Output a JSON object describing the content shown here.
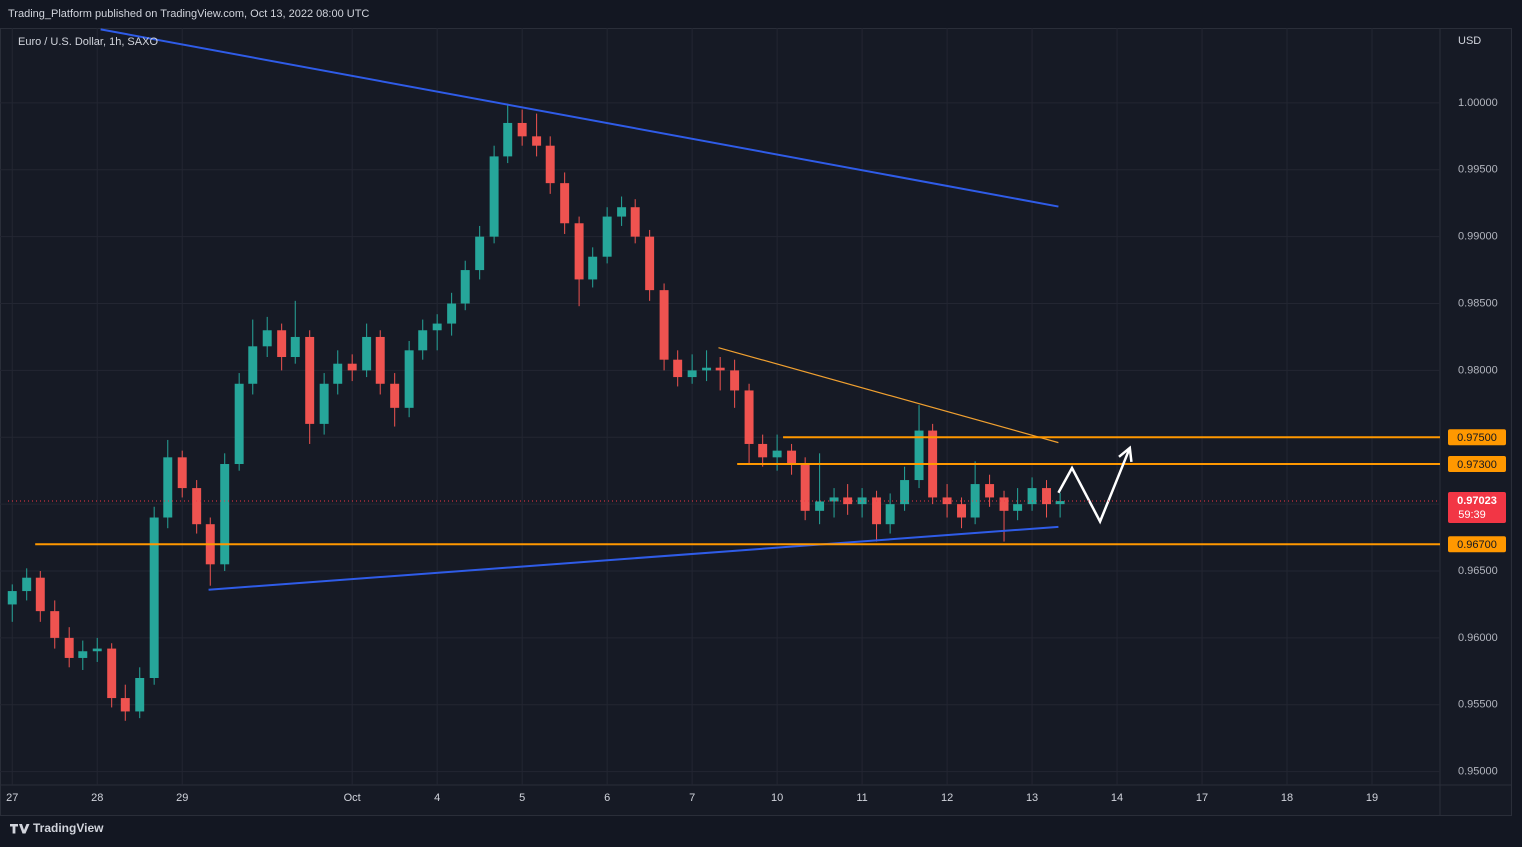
{
  "header": "Trading_Platform published on TradingView.com, Oct 13, 2022 08:00 UTC",
  "brand": "TradingView",
  "chart_data": {
    "type": "candlestick",
    "title": "Euro / U.S. Dollar, 1h, SAXO",
    "y_label": "USD",
    "up_color": "#26a69a",
    "down_color": "#ef5350",
    "grid": true,
    "xlim": [
      -0.05,
      16.8
    ],
    "ylim": [
      0.949,
      1.0056
    ],
    "xticks": [
      {
        "value": 0,
        "label": "27"
      },
      {
        "value": 1,
        "label": "28"
      },
      {
        "value": 2,
        "label": "29"
      },
      {
        "value": 4,
        "label": "Oct"
      },
      {
        "value": 5,
        "label": "4"
      },
      {
        "value": 6,
        "label": "5"
      },
      {
        "value": 7,
        "label": "6"
      },
      {
        "value": 8,
        "label": "7"
      },
      {
        "value": 9,
        "label": "10"
      },
      {
        "value": 10,
        "label": "11"
      },
      {
        "value": 11,
        "label": "12"
      },
      {
        "value": 12,
        "label": "13"
      },
      {
        "value": 13,
        "label": "14"
      },
      {
        "value": 14,
        "label": "17"
      },
      {
        "value": 15,
        "label": "18"
      },
      {
        "value": 16,
        "label": "19"
      }
    ],
    "yticks": [
      {
        "value": 0.95,
        "label": "0.95000"
      },
      {
        "value": 0.955,
        "label": "0.95500"
      },
      {
        "value": 0.96,
        "label": "0.96000"
      },
      {
        "value": 0.965,
        "label": "0.96500"
      },
      {
        "value": 0.97,
        "label": "0.97000"
      },
      {
        "value": 0.975,
        "label": "0.97500"
      },
      {
        "value": 0.98,
        "label": "0.98000"
      },
      {
        "value": 0.985,
        "label": "0.98500"
      },
      {
        "value": 0.99,
        "label": "0.99000"
      },
      {
        "value": 0.995,
        "label": "0.99500"
      },
      {
        "value": 1.0,
        "label": "1.00000"
      }
    ],
    "x": [
      0,
      0.17,
      0.33,
      0.5,
      0.67,
      0.83,
      1,
      1.17,
      1.33,
      1.5,
      1.67,
      1.83,
      2,
      2.17,
      2.33,
      2.5,
      2.67,
      2.83,
      3,
      3.17,
      3.33,
      3.5,
      3.67,
      3.83,
      4,
      4.17,
      4.33,
      4.5,
      4.67,
      4.83,
      5,
      5.17,
      5.33,
      5.5,
      5.67,
      5.83,
      6,
      6.17,
      6.33,
      6.5,
      6.67,
      6.83,
      7,
      7.17,
      7.33,
      7.5,
      7.67,
      7.83,
      8,
      8.17,
      8.33,
      8.5,
      8.67,
      8.83,
      9,
      9.17,
      9.33,
      9.5,
      9.67,
      9.83,
      10,
      10.17,
      10.33,
      10.5,
      10.67,
      10.83,
      11,
      11.17,
      11.33,
      11.5,
      11.67,
      11.83,
      12,
      12.17,
      12.33
    ],
    "open": [
      0.9625,
      0.9635,
      0.9645,
      0.962,
      0.96,
      0.9585,
      0.959,
      0.9592,
      0.9555,
      0.9545,
      0.957,
      0.969,
      0.9735,
      0.9712,
      0.9685,
      0.9655,
      0.973,
      0.979,
      0.9818,
      0.983,
      0.981,
      0.9825,
      0.976,
      0.979,
      0.9805,
      0.98,
      0.9825,
      0.979,
      0.9772,
      0.9815,
      0.983,
      0.9835,
      0.985,
      0.9875,
      0.99,
      0.996,
      0.9985,
      0.9975,
      0.9968,
      0.994,
      0.991,
      0.9868,
      0.9885,
      0.9915,
      0.9922,
      0.99,
      0.986,
      0.9808,
      0.9795,
      0.98,
      0.9802,
      0.98,
      0.9785,
      0.9745,
      0.9735,
      0.974,
      0.973,
      0.9695,
      0.9702,
      0.9705,
      0.97,
      0.9705,
      0.9685,
      0.97,
      0.9718,
      0.9755,
      0.9705,
      0.97,
      0.969,
      0.9715,
      0.9705,
      0.9695,
      0.97,
      0.9712,
      0.97
    ],
    "high": [
      0.964,
      0.9652,
      0.965,
      0.9628,
      0.9608,
      0.9598,
      0.96,
      0.9596,
      0.9565,
      0.9578,
      0.9698,
      0.9748,
      0.974,
      0.9718,
      0.969,
      0.9738,
      0.9798,
      0.9838,
      0.984,
      0.9835,
      0.9852,
      0.983,
      0.9798,
      0.9815,
      0.9812,
      0.9835,
      0.983,
      0.9798,
      0.9822,
      0.9838,
      0.9842,
      0.9858,
      0.9882,
      0.9908,
      0.9968,
      0.99993,
      0.9995,
      0.9992,
      0.9975,
      0.9948,
      0.9915,
      0.9892,
      0.9922,
      0.993,
      0.9928,
      0.9905,
      0.9865,
      0.9815,
      0.9812,
      0.9815,
      0.981,
      0.9808,
      0.979,
      0.9752,
      0.9752,
      0.9745,
      0.9735,
      0.9738,
      0.9712,
      0.9715,
      0.9712,
      0.971,
      0.9708,
      0.9728,
      0.9774,
      0.976,
      0.9715,
      0.9705,
      0.9732,
      0.9722,
      0.971,
      0.9712,
      0.972,
      0.9718,
      0.97085
    ],
    "low": [
      0.9612,
      0.9628,
      0.9612,
      0.9592,
      0.9578,
      0.9576,
      0.9582,
      0.9548,
      0.9538,
      0.954,
      0.9565,
      0.9682,
      0.9705,
      0.9678,
      0.9639,
      0.965,
      0.9725,
      0.9782,
      0.981,
      0.98,
      0.9805,
      0.9745,
      0.9752,
      0.9782,
      0.9792,
      0.9795,
      0.9782,
      0.9758,
      0.9765,
      0.9808,
      0.9815,
      0.9826,
      0.9845,
      0.9868,
      0.9895,
      0.9955,
      0.9968,
      0.996,
      0.9932,
      0.9902,
      0.9848,
      0.9862,
      0.988,
      0.9908,
      0.9895,
      0.9852,
      0.98,
      0.9788,
      0.979,
      0.9792,
      0.9785,
      0.9772,
      0.973,
      0.9728,
      0.9725,
      0.9722,
      0.9688,
      0.9685,
      0.969,
      0.9692,
      0.969,
      0.9672,
      0.9678,
      0.9695,
      0.9712,
      0.97,
      0.969,
      0.9682,
      0.9685,
      0.9698,
      0.9672,
      0.9688,
      0.9695,
      0.969,
      0.969
    ],
    "close": [
      0.9635,
      0.9645,
      0.962,
      0.96,
      0.9585,
      0.959,
      0.9592,
      0.9555,
      0.9545,
      0.957,
      0.969,
      0.9735,
      0.9712,
      0.9685,
      0.9655,
      0.973,
      0.979,
      0.9818,
      0.983,
      0.981,
      0.9825,
      0.976,
      0.979,
      0.9805,
      0.98,
      0.9825,
      0.979,
      0.9772,
      0.9815,
      0.983,
      0.9835,
      0.985,
      0.9875,
      0.99,
      0.996,
      0.9985,
      0.9975,
      0.9968,
      0.994,
      0.991,
      0.9868,
      0.9885,
      0.9915,
      0.9922,
      0.99,
      0.986,
      0.9808,
      0.9795,
      0.98,
      0.9802,
      0.98,
      0.9785,
      0.9745,
      0.9735,
      0.974,
      0.973,
      0.9695,
      0.9702,
      0.9705,
      0.97,
      0.9705,
      0.9685,
      0.97,
      0.9718,
      0.9755,
      0.9705,
      0.97,
      0.969,
      0.9715,
      0.9705,
      0.9695,
      0.97,
      0.9712,
      0.97,
      0.97023
    ],
    "last_price": {
      "value": 0.97023,
      "label": "0.97023",
      "countdown": "59:39",
      "color": "#f23645"
    },
    "levels": [
      {
        "value": 0.975,
        "label": "0.97500",
        "start": 9.07,
        "color": "#ff9800"
      },
      {
        "value": 0.973,
        "label": "0.97300",
        "start": 8.53,
        "color": "#ff9800"
      },
      {
        "value": 0.967,
        "label": "0.96700",
        "start": 0.27,
        "color": "#ff9800"
      }
    ],
    "trendlines": [
      {
        "x": [
          1.04,
          12.31
        ],
        "y": [
          1.0055,
          0.99225
        ],
        "color": "#2f5ce8"
      },
      {
        "x": [
          2.31,
          12.31
        ],
        "y": [
          0.9636,
          0.9683
        ],
        "color": "#2f5ce8"
      },
      {
        "x": [
          8.31,
          12.31
        ],
        "y": [
          0.9817,
          0.9746
        ],
        "color": "#f0a030"
      }
    ],
    "projection": {
      "x": [
        12.31,
        12.47,
        12.8,
        13.15
      ],
      "y": [
        0.97085,
        0.9727,
        0.9687,
        0.9742
      ],
      "color": "#ffffff"
    }
  }
}
